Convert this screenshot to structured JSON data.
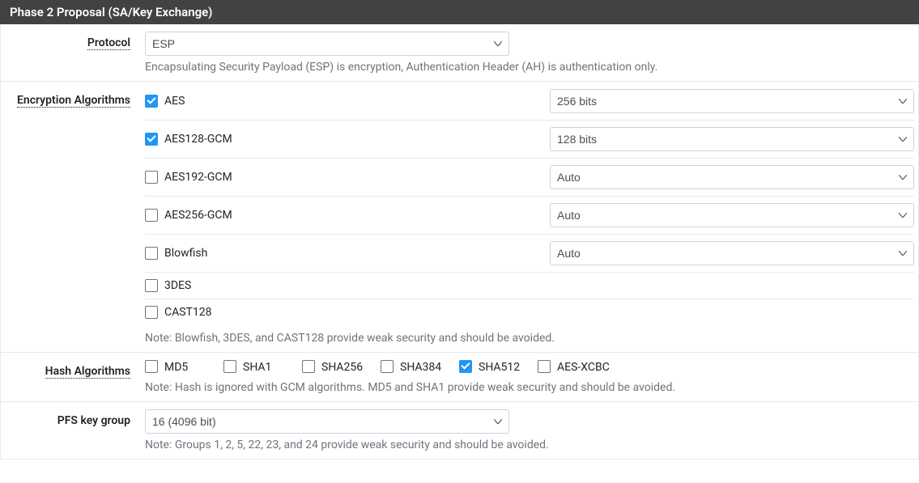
{
  "panel": {
    "title": "Phase 2 Proposal (SA/Key Exchange)"
  },
  "protocol": {
    "label": "Protocol",
    "value": "ESP",
    "help": "Encapsulating Security Payload (ESP) is encryption, Authentication Header (AH) is authentication only."
  },
  "encryption": {
    "label": "Encryption Algorithms",
    "algos": [
      {
        "name": "AES",
        "checked": true,
        "bits": "256 bits",
        "has_select": true
      },
      {
        "name": "AES128-GCM",
        "checked": true,
        "bits": "128 bits",
        "has_select": true
      },
      {
        "name": "AES192-GCM",
        "checked": false,
        "bits": "Auto",
        "has_select": true
      },
      {
        "name": "AES256-GCM",
        "checked": false,
        "bits": "Auto",
        "has_select": true
      },
      {
        "name": "Blowfish",
        "checked": false,
        "bits": "Auto",
        "has_select": true
      },
      {
        "name": "3DES",
        "checked": false,
        "bits": "",
        "has_select": false
      },
      {
        "name": "CAST128",
        "checked": false,
        "bits": "",
        "has_select": false
      }
    ],
    "note": "Note: Blowfish, 3DES, and CAST128 provide weak security and should be avoided."
  },
  "hash": {
    "label": "Hash Algorithms",
    "algos": [
      {
        "name": "MD5",
        "checked": false
      },
      {
        "name": "SHA1",
        "checked": false
      },
      {
        "name": "SHA256",
        "checked": false
      },
      {
        "name": "SHA384",
        "checked": false
      },
      {
        "name": "SHA512",
        "checked": true
      },
      {
        "name": "AES-XCBC",
        "checked": false
      }
    ],
    "note": "Note: Hash is ignored with GCM algorithms. MD5 and SHA1 provide weak security and should be avoided."
  },
  "pfs": {
    "label": "PFS key group",
    "value": "16 (4096 bit)",
    "note": "Note: Groups 1, 2, 5, 22, 23, and 24 provide weak security and should be avoided."
  },
  "colors": {
    "header_bg": "#424242",
    "border": "#e9e9e9",
    "text": "#212529",
    "muted": "#6c757d",
    "checkbox_checked": "#2196f3"
  }
}
